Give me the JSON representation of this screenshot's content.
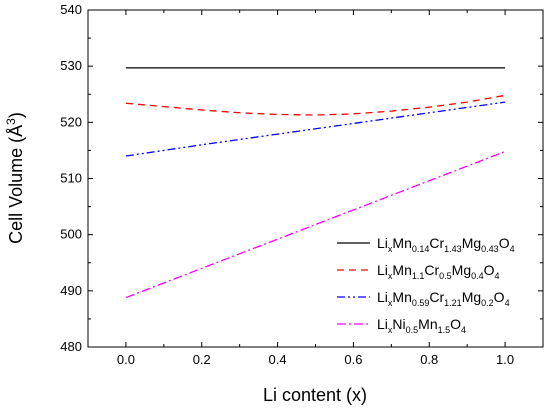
{
  "chart_data": {
    "type": "line",
    "xlabel": "Li content (x)",
    "ylabel_main": "Cell Volume (Å",
    "ylabel_sup": "3",
    "ylabel_end": ")",
    "xlim": [
      -0.1,
      1.1
    ],
    "ylim": [
      480,
      540
    ],
    "xticks": [
      0.0,
      0.2,
      0.4,
      0.6,
      0.8,
      1.0
    ],
    "xtick_labels": [
      "0.0",
      "0.2",
      "0.4",
      "0.6",
      "0.8",
      "1.0"
    ],
    "yticks": [
      480,
      490,
      500,
      510,
      520,
      530,
      540
    ],
    "ytick_labels": [
      "480",
      "490",
      "500",
      "510",
      "520",
      "530",
      "540"
    ],
    "grid": false,
    "legend_position": "bottom-right",
    "series": [
      {
        "legend": [
          [
            "Li",
            ""
          ],
          [
            "x",
            "sub"
          ],
          [
            "Mn",
            ""
          ],
          [
            "0.14",
            "sub"
          ],
          [
            "Cr",
            ""
          ],
          [
            "1.43",
            "sub"
          ],
          [
            "Mg",
            ""
          ],
          [
            "0.43",
            "sub"
          ],
          [
            "O",
            ""
          ],
          [
            "4",
            "sub"
          ]
        ],
        "color": "#000000",
        "dash": "",
        "x": [
          0.0,
          0.2,
          0.4,
          0.6,
          0.8,
          1.0
        ],
        "y": [
          529.7,
          529.7,
          529.7,
          529.7,
          529.7,
          529.7
        ]
      },
      {
        "legend": [
          [
            "Li",
            ""
          ],
          [
            "x",
            "sub"
          ],
          [
            "Mn",
            ""
          ],
          [
            "1.1",
            "sub"
          ],
          [
            "Cr",
            ""
          ],
          [
            "0.5",
            "sub"
          ],
          [
            "Mg",
            ""
          ],
          [
            "0.4",
            "sub"
          ],
          [
            "O",
            ""
          ],
          [
            "4",
            "sub"
          ]
        ],
        "color": "#ff0000",
        "dash": "7,5",
        "x": [
          0.0,
          0.1,
          0.2,
          0.3,
          0.4,
          0.5,
          0.6,
          0.7,
          0.8,
          0.9,
          1.0
        ],
        "y": [
          523.4,
          522.8,
          522.2,
          521.7,
          521.4,
          521.3,
          521.5,
          522.0,
          522.7,
          523.6,
          524.8
        ]
      },
      {
        "legend": [
          [
            "Li",
            ""
          ],
          [
            "x",
            "sub"
          ],
          [
            "Mn",
            ""
          ],
          [
            "0.59",
            "sub"
          ],
          [
            "Cr",
            ""
          ],
          [
            "1.21",
            "sub"
          ],
          [
            "Mg",
            ""
          ],
          [
            "0.2",
            "sub"
          ],
          [
            "O",
            ""
          ],
          [
            "4",
            "sub"
          ]
        ],
        "color": "#0000ff",
        "dash": "8,3,2,3,2,3",
        "x": [
          0.0,
          0.2,
          0.4,
          0.6,
          0.8,
          1.0
        ],
        "y": [
          514.0,
          516.0,
          517.9,
          519.8,
          521.7,
          523.6
        ]
      },
      {
        "legend": [
          [
            "Li",
            ""
          ],
          [
            "x",
            "sub"
          ],
          [
            "Ni",
            ""
          ],
          [
            "0.5",
            "sub"
          ],
          [
            "Mn",
            ""
          ],
          [
            "1.5",
            "sub"
          ],
          [
            "O",
            ""
          ],
          [
            "4",
            "sub"
          ]
        ],
        "color": "#ff00ff",
        "dash": "9,3,2,3",
        "x": [
          0.0,
          0.2,
          0.4,
          0.6,
          0.8,
          1.0
        ],
        "y": [
          488.8,
          494.0,
          499.2,
          504.4,
          509.6,
          514.8
        ]
      }
    ]
  }
}
